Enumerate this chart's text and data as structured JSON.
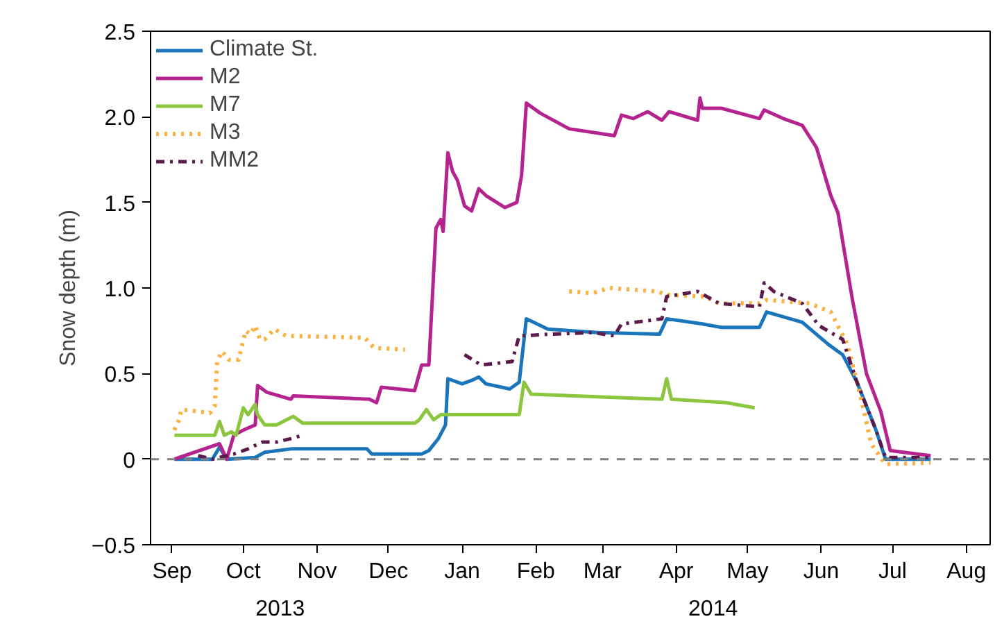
{
  "chart_data": {
    "type": "line",
    "ylabel": "Snow depth (m)",
    "annotations": [
      "2013",
      "2014"
    ],
    "xlim": [
      "2013-08-23",
      "2014-08-11"
    ],
    "xticks": [
      {
        "value": "2013-09-01",
        "label": "Sep"
      },
      {
        "value": "2013-10-01",
        "label": "Oct"
      },
      {
        "value": "2013-11-01",
        "label": "Nov"
      },
      {
        "value": "2013-12-01",
        "label": "Dec"
      },
      {
        "value": "2014-01-01",
        "label": "Jan"
      },
      {
        "value": "2014-02-01",
        "label": "Feb"
      },
      {
        "value": "2014-03-01",
        "label": "Mar"
      },
      {
        "value": "2014-04-01",
        "label": "Apr"
      },
      {
        "value": "2014-05-01",
        "label": "May"
      },
      {
        "value": "2014-06-01",
        "label": "Jun"
      },
      {
        "value": "2014-07-01",
        "label": "Jul"
      },
      {
        "value": "2014-08-01",
        "label": "Aug"
      }
    ],
    "ylim": [
      -0.5,
      2.5
    ],
    "yticks": [
      -0.5,
      0,
      0.5,
      {
        "value": 1,
        "label": "1.0"
      },
      {
        "value": 1.5,
        "label": "1.5"
      },
      {
        "value": 2,
        "label": "2.0"
      },
      2.5
    ],
    "grid": false,
    "legend": "top left",
    "ref_lines": [
      {
        "axis": "y",
        "value": 0,
        "color": "#808080",
        "line_style": "dashed"
      }
    ],
    "series": [
      {
        "name": "Climate St.",
        "color": "#1a75bb",
        "line_style": "solid",
        "x": [
          "2013-09-02",
          "2013-09-18",
          "2013-09-21",
          "2013-09-24",
          "2013-10-06",
          "2013-10-10",
          "2013-10-21",
          "2013-11-22",
          "2013-11-24",
          "2013-12-15",
          "2013-12-18",
          "2013-12-22",
          "2013-12-25",
          "2013-12-26",
          "2014-01-01",
          "2014-01-05",
          "2014-01-08",
          "2014-01-11",
          "2014-01-21",
          "2014-01-25",
          "2014-01-28",
          "2014-02-06",
          "2014-02-27",
          "2014-03-25",
          "2014-03-28",
          "2014-04-12",
          "2014-04-20",
          "2014-05-06",
          "2014-05-09",
          "2014-05-24",
          "2014-06-04",
          "2014-06-10",
          "2014-06-16",
          "2014-06-24",
          "2014-06-28",
          "2014-07-17"
        ],
        "values": [
          0,
          0,
          0.07,
          0,
          0.01,
          0.04,
          0.06,
          0.06,
          0.03,
          0.03,
          0.05,
          0.12,
          0.2,
          0.47,
          0.44,
          0.46,
          0.48,
          0.44,
          0.41,
          0.45,
          0.82,
          0.76,
          0.74,
          0.73,
          0.82,
          0.79,
          0.77,
          0.77,
          0.86,
          0.8,
          0.67,
          0.61,
          0.45,
          0.17,
          0,
          0
        ]
      },
      {
        "name": "M2",
        "color": "#b5248e",
        "line_style": "solid",
        "x": [
          "2013-09-02",
          "2013-09-21",
          "2013-09-24",
          "2013-09-27",
          "2013-10-01",
          "2013-10-06",
          "2013-10-07",
          "2013-10-11",
          "2013-10-21",
          "2013-10-22",
          "2013-11-23",
          "2013-11-26",
          "2013-11-28",
          "2013-12-12",
          "2013-12-15",
          "2013-12-18",
          "2013-12-21",
          "2013-12-23",
          "2013-12-24",
          "2013-12-26",
          "2013-12-28",
          "2013-12-30",
          "2014-01-02",
          "2014-01-05",
          "2014-01-08",
          "2014-01-11",
          "2014-01-19",
          "2014-01-24",
          "2014-01-26",
          "2014-01-28",
          "2014-02-03",
          "2014-02-15",
          "2014-03-06",
          "2014-03-09",
          "2014-03-14",
          "2014-03-20",
          "2014-03-26",
          "2014-03-29",
          "2014-04-10",
          "2014-04-11",
          "2014-04-12",
          "2014-04-20",
          "2014-05-06",
          "2014-05-08",
          "2014-05-16",
          "2014-05-24",
          "2014-05-30",
          "2014-06-05",
          "2014-06-08",
          "2014-06-14",
          "2014-06-20",
          "2014-06-26",
          "2014-06-30",
          "2014-07-17"
        ],
        "values": [
          0,
          0.09,
          0,
          0.14,
          0.17,
          0.2,
          0.43,
          0.39,
          0.35,
          0.37,
          0.35,
          0.33,
          0.42,
          0.4,
          0.55,
          0.55,
          1.35,
          1.4,
          1.33,
          1.79,
          1.68,
          1.63,
          1.48,
          1.45,
          1.58,
          1.54,
          1.47,
          1.5,
          1.66,
          2.08,
          2.02,
          1.93,
          1.89,
          2.01,
          1.99,
          2.03,
          1.98,
          2.03,
          1.98,
          2.11,
          2.05,
          2.05,
          1.99,
          2.04,
          1.99,
          1.95,
          1.82,
          1.54,
          1.44,
          0.94,
          0.5,
          0.28,
          0.05,
          0.02
        ]
      },
      {
        "name": "M7",
        "color": "#8cc63f",
        "line_style": "solid",
        "x": [
          "2013-09-02",
          "2013-09-19",
          "2013-09-21",
          "2013-09-23",
          "2013-09-26",
          "2013-09-28",
          "2013-10-01",
          "2013-10-03",
          "2013-10-06",
          "2013-10-07",
          "2013-10-10",
          "2013-10-15",
          "2013-10-22",
          "2013-10-26",
          "2013-12-12",
          "2013-12-14",
          "2013-12-17",
          "2013-12-20",
          "2013-12-23",
          "2014-01-11",
          "2014-01-25",
          "2014-01-27",
          "2014-01-30",
          "2014-03-06",
          "2014-03-26",
          "2014-03-28",
          "2014-03-30",
          "2014-04-22",
          "2014-05-04"
        ],
        "values": [
          0.14,
          0.14,
          0.22,
          0.14,
          0.16,
          0.14,
          0.3,
          0.26,
          0.32,
          0.26,
          0.2,
          0.2,
          0.25,
          0.21,
          0.21,
          0.23,
          0.29,
          0.23,
          0.26,
          0.26,
          0.26,
          0.45,
          0.38,
          0.36,
          0.35,
          0.47,
          0.35,
          0.33,
          0.3
        ]
      },
      {
        "name": "M3",
        "color": "#fbb040",
        "line_style": "dotted",
        "x": [
          "2013-09-02",
          "2013-09-04",
          "2013-09-05",
          "2013-09-17",
          "2013-09-19",
          "2013-09-20",
          "2013-09-22",
          "2013-09-25",
          "2013-09-29",
          "2013-10-02",
          "2013-10-04",
          "2013-10-06",
          "2013-10-08",
          "2013-10-10",
          "2013-10-14",
          "2013-10-19",
          "2013-11-21",
          "2013-11-25",
          "2013-12-08",
          "2014-01-10",
          "2014-02-15",
          "2014-02-25",
          "2014-03-04",
          "2014-03-24",
          "2014-03-28",
          "2014-04-13",
          "2014-04-19",
          "2014-05-06",
          "2014-05-09",
          "2014-05-27",
          "2014-06-05",
          "2014-06-12",
          "2014-06-18",
          "2014-06-22",
          "2014-06-28",
          "2014-07-17"
        ],
        "values": [
          0.17,
          0.23,
          0.29,
          0.27,
          0.31,
          0.57,
          0.63,
          0.58,
          0.58,
          0.75,
          0.73,
          0.78,
          0.7,
          0.7,
          0.76,
          0.72,
          0.71,
          0.65,
          0.64,
          null,
          0.98,
          0.97,
          1.0,
          0.98,
          0.96,
          0.95,
          0.91,
          0.91,
          0.93,
          0.91,
          0.86,
          0.67,
          0.34,
          0.09,
          -0.03,
          -0.02
        ]
      },
      {
        "name": "MM2",
        "color": "#5b1a4c",
        "line_style": "dashdot",
        "x": [
          "2013-09-12",
          "2013-09-18",
          "2013-09-27",
          "2013-10-03",
          "2013-10-09",
          "2013-10-15",
          "2013-10-21",
          "2013-10-26",
          "2013-12-01",
          "2014-01-02",
          "2014-01-09",
          "2014-01-22",
          "2014-01-25",
          "2014-02-07",
          "2014-02-25",
          "2014-03-06",
          "2014-03-09",
          "2014-03-26",
          "2014-03-28",
          "2014-04-10",
          "2014-04-19",
          "2014-05-06",
          "2014-05-08",
          "2014-05-12",
          "2014-05-24",
          "2014-05-31",
          "2014-06-10",
          "2014-06-16",
          "2014-06-24",
          "2014-06-28",
          "2014-07-17"
        ],
        "values": [
          0.02,
          0,
          0.03,
          0.06,
          0.1,
          0.1,
          0.12,
          0.14,
          null,
          0.61,
          0.55,
          0.57,
          0.72,
          0.73,
          0.74,
          0.72,
          0.79,
          0.82,
          0.95,
          0.98,
          0.91,
          0.89,
          1.03,
          0.98,
          0.91,
          0.78,
          0.7,
          0.45,
          0.17,
          0.01,
          0.01
        ]
      }
    ]
  }
}
